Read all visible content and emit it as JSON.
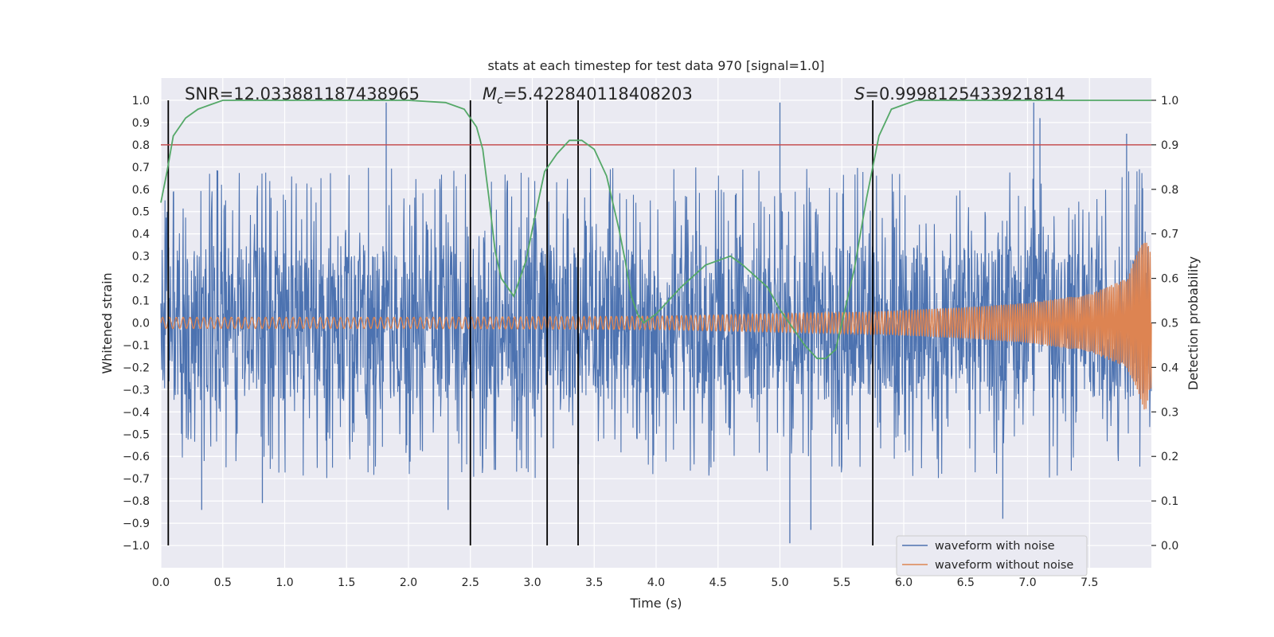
{
  "chart_data": {
    "type": "line",
    "title": "stats at each timestep for test data 970 [signal=1.0]",
    "xlabel": "Time (s)",
    "ylabel": "Whitened strain",
    "y2label": "Detection probability",
    "xlim": [
      0.0,
      8.0
    ],
    "ylim": [
      -1.1,
      1.1
    ],
    "y2lim": [
      -0.05,
      1.05
    ],
    "xticks": [
      0.0,
      0.5,
      1.0,
      1.5,
      2.0,
      2.5,
      3.0,
      3.5,
      4.0,
      4.5,
      5.0,
      5.5,
      6.0,
      6.5,
      7.0,
      7.5
    ],
    "xtick_labels": [
      "0.0",
      "0.5",
      "1.0",
      "1.5",
      "2.0",
      "2.5",
      "3.0",
      "3.5",
      "4.0",
      "4.5",
      "5.0",
      "5.5",
      "6.0",
      "6.5",
      "7.0",
      "7.5"
    ],
    "yticks": [
      1.0,
      0.9,
      0.8,
      0.7,
      0.6,
      0.5,
      0.4,
      0.3,
      0.2,
      0.1,
      0.0,
      -0.1,
      -0.2,
      -0.3,
      -0.4,
      -0.5,
      -0.6,
      -0.7,
      -0.8,
      -0.9,
      -1.0
    ],
    "ytick_labels": [
      "1.0",
      "0.9",
      "0.8",
      "0.7",
      "0.6",
      "0.5",
      "0.4",
      "0.3",
      "0.2",
      "0.1",
      "0.0",
      "−0.1",
      "−0.2",
      "−0.3",
      "−0.4",
      "−0.5",
      "−0.6",
      "−0.7",
      "−0.8",
      "−0.9",
      "−1.0"
    ],
    "y2ticks": [
      1.0,
      0.9,
      0.8,
      0.7,
      0.6,
      0.5,
      0.4,
      0.3,
      0.2,
      0.1,
      0.0
    ],
    "y2tick_labels": [
      "1.0",
      "0.9",
      "0.8",
      "0.7",
      "0.6",
      "0.5",
      "0.4",
      "0.3",
      "0.2",
      "0.1",
      "0.0"
    ],
    "grid": true,
    "annotations": {
      "snr": "SNR=12.033881187438965",
      "mc_symbol": "M",
      "mc_subscript": "c",
      "mc_value": "=5.422840118408203",
      "s_symbol": "S",
      "s_value": "=0.9998125433921814"
    },
    "threshold_line": {
      "axis": "y2",
      "value": 0.9,
      "color": "#c44e52"
    },
    "vertical_lines": [
      0.06,
      2.5,
      3.12,
      3.37,
      5.75
    ],
    "vertical_line_range": [
      -1.0,
      1.0
    ],
    "series": [
      {
        "name": "waveform with noise",
        "axis": "y",
        "color": "#4c72b0",
        "kind": "noisy-strain",
        "noise_envelope": 0.5,
        "peak_spikes": [
          [
            0.33,
            -0.84
          ],
          [
            0.82,
            -0.81
          ],
          [
            1.82,
            0.99
          ],
          [
            2.32,
            -0.84
          ],
          [
            3.12,
            -0.84
          ],
          [
            5.0,
            0.99
          ],
          [
            5.08,
            -0.99
          ],
          [
            5.25,
            -0.93
          ],
          [
            6.8,
            -0.88
          ],
          [
            7.05,
            0.99
          ],
          [
            7.1,
            0.92
          ],
          [
            7.8,
            0.85
          ]
        ]
      },
      {
        "name": "waveform without noise",
        "axis": "y",
        "color": "#dd8452",
        "kind": "chirp",
        "amplitude_points": [
          [
            0.0,
            0.025
          ],
          [
            2.0,
            0.025
          ],
          [
            4.0,
            0.03
          ],
          [
            5.75,
            0.05
          ],
          [
            6.5,
            0.07
          ],
          [
            7.0,
            0.09
          ],
          [
            7.5,
            0.13
          ],
          [
            7.8,
            0.2
          ],
          [
            7.95,
            0.4
          ],
          [
            8.0,
            0.3
          ]
        ]
      },
      {
        "name": "detection probability",
        "axis": "y2",
        "color": "#55a868",
        "x": [
          0.0,
          0.05,
          0.1,
          0.2,
          0.3,
          0.4,
          0.5,
          1.0,
          1.5,
          2.0,
          2.3,
          2.45,
          2.55,
          2.6,
          2.65,
          2.7,
          2.75,
          2.85,
          2.95,
          3.0,
          3.1,
          3.2,
          3.3,
          3.4,
          3.5,
          3.6,
          3.7,
          3.75,
          3.8,
          3.85,
          3.9,
          4.0,
          4.2,
          4.4,
          4.5,
          4.6,
          4.7,
          4.9,
          5.0,
          5.1,
          5.2,
          5.3,
          5.37,
          5.45,
          5.5,
          5.6,
          5.7,
          5.75,
          5.8,
          5.9,
          6.0,
          6.1,
          6.2,
          7.0,
          8.0
        ],
        "y": [
          0.77,
          0.84,
          0.92,
          0.96,
          0.98,
          0.99,
          1.0,
          1.0,
          1.0,
          1.0,
          0.995,
          0.98,
          0.94,
          0.89,
          0.78,
          0.66,
          0.6,
          0.56,
          0.64,
          0.71,
          0.84,
          0.88,
          0.91,
          0.91,
          0.89,
          0.83,
          0.71,
          0.64,
          0.56,
          0.52,
          0.5,
          0.52,
          0.58,
          0.63,
          0.64,
          0.65,
          0.63,
          0.58,
          0.53,
          0.49,
          0.45,
          0.42,
          0.42,
          0.44,
          0.5,
          0.62,
          0.78,
          0.85,
          0.92,
          0.98,
          0.99,
          1.0,
          1.0,
          1.0,
          1.0
        ]
      }
    ],
    "legend": {
      "placement": "lower-right",
      "entries": [
        {
          "label": "waveform with noise",
          "color": "#4c72b0"
        },
        {
          "label": "waveform without noise",
          "color": "#dd8452"
        }
      ]
    }
  }
}
